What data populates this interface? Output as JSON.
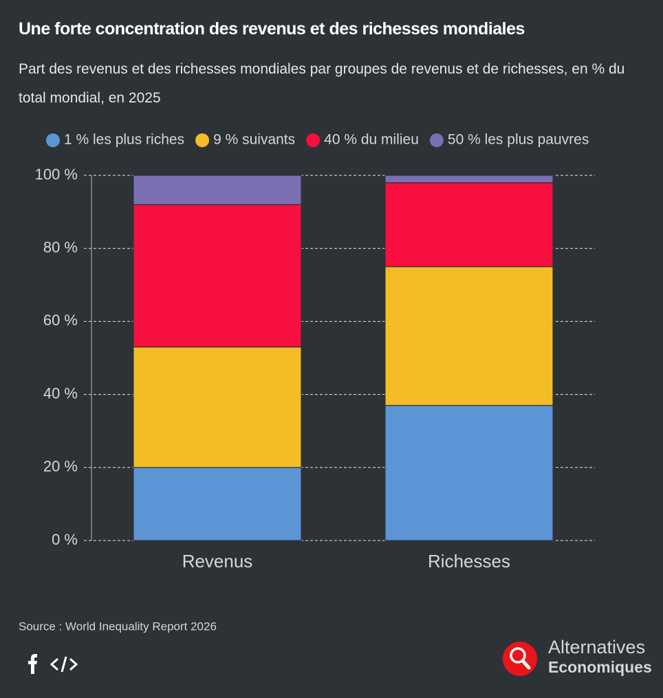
{
  "chart_data": {
    "type": "bar",
    "stacked": true,
    "title": "Une forte concentration des revenus et des richesses mondiales",
    "subtitle": "Part des revenus et des richesses mondiales par groupes de revenus et de richesses, en % du total mondial, en 2025",
    "categories": [
      "Revenus",
      "Richesses"
    ],
    "series": [
      {
        "name": "1 % les plus riches",
        "color": "#5b95d6",
        "values": [
          20,
          37
        ]
      },
      {
        "name": "9 % suivants",
        "color": "#f4bd27",
        "values": [
          33,
          38
        ]
      },
      {
        "name": "40 % du milieu",
        "color": "#f70f3f",
        "values": [
          39,
          23
        ]
      },
      {
        "name": "50 % les plus pauvres",
        "color": "#7a6fb3",
        "values": [
          8,
          2
        ]
      }
    ],
    "ylim": [
      0,
      100
    ],
    "yticks": [
      {
        "value": 0,
        "label": "0 %"
      },
      {
        "value": 20,
        "label": "20 %"
      },
      {
        "value": 40,
        "label": "40 %"
      },
      {
        "value": 60,
        "label": "60 %"
      },
      {
        "value": 80,
        "label": "80 %"
      },
      {
        "value": 100,
        "label": "100 %"
      }
    ],
    "grid": true,
    "legend": "top",
    "source": "Source : World Inequality Report 2026"
  },
  "brand": {
    "line1": "Alternatives",
    "line2": "Economiques"
  }
}
